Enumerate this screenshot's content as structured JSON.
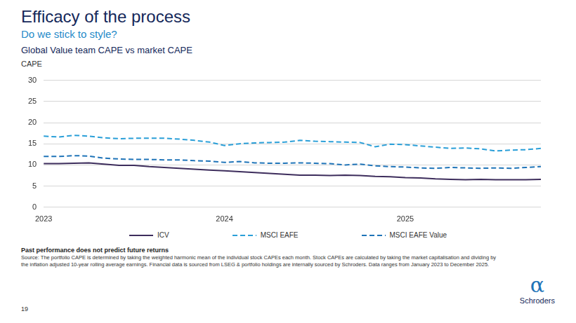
{
  "slide": {
    "heading": "Efficacy of the process",
    "subheading": "Do we stick to style?",
    "disclaimer": "Past performance does not predict future returns",
    "source": "Source: The portfolio CAPE is determined by taking the weighted harmonic mean of the individual stock CAPEs each month. Stock CAPEs are calculated by taking the market capitalisation and dividing by the inflation adjusted 10-year rolling average earnings. Financial data is sourced from LSEG & portfolio holdings are internally sourced by Schroders. Data ranges from January 2023 to December 2025.",
    "page_number": 19,
    "brand": "Schroders",
    "logo": "α"
  },
  "chart_data": {
    "type": "line",
    "title": "Global Value team CAPE vs market CAPE",
    "y_label": "CAPE",
    "categories": [
      "2023",
      null,
      null,
      null,
      null,
      null,
      null,
      null,
      null,
      null,
      null,
      null,
      "2024",
      null,
      null,
      null,
      null,
      null,
      null,
      null,
      null,
      null,
      null,
      null,
      "2025",
      null,
      null,
      null,
      null,
      null,
      null,
      null,
      null,
      null
    ],
    "series": [
      {
        "name": "ICV",
        "color": "#3d2d5c",
        "line_style": "solid",
        "values": [
          10.3,
          10.3,
          10.4,
          10.5,
          10.2,
          9.9,
          9.9,
          9.6,
          9.4,
          9.2,
          9.0,
          8.8,
          8.6,
          8.4,
          8.2,
          8.0,
          7.8,
          7.6,
          7.6,
          7.5,
          7.6,
          7.5,
          7.3,
          7.2,
          7.0,
          6.9,
          6.7,
          6.6,
          6.5,
          6.6,
          6.5,
          6.5,
          6.5,
          6.6
        ]
      },
      {
        "name": "MSCI EAFE",
        "color": "#2a9fd8",
        "line_style": "dashed",
        "values": [
          16.8,
          16.6,
          17.0,
          16.8,
          16.4,
          16.2,
          16.3,
          16.3,
          16.3,
          16.1,
          15.8,
          15.4,
          14.6,
          15.0,
          15.2,
          15.3,
          15.4,
          15.8,
          15.6,
          15.5,
          15.4,
          15.3,
          14.3,
          14.9,
          14.8,
          14.5,
          14.2,
          13.9,
          14.0,
          13.8,
          13.3,
          13.5,
          13.6,
          13.9
        ]
      },
      {
        "name": "MSCI EAFE Value",
        "color": "#1f74b8",
        "line_style": "dashed",
        "values": [
          12.0,
          12.0,
          12.2,
          12.1,
          11.6,
          11.4,
          11.3,
          11.3,
          11.2,
          11.2,
          11.0,
          10.9,
          10.6,
          10.8,
          10.5,
          10.4,
          10.4,
          10.5,
          10.4,
          10.3,
          10.0,
          10.2,
          9.8,
          9.6,
          9.5,
          9.3,
          9.2,
          9.4,
          9.3,
          9.2,
          9.3,
          9.2,
          9.4,
          9.6
        ]
      }
    ],
    "ylim": [
      0,
      30
    ],
    "yticks": [
      0,
      5,
      10,
      15,
      20,
      25,
      30
    ],
    "grid": true,
    "legend": "bottom"
  }
}
